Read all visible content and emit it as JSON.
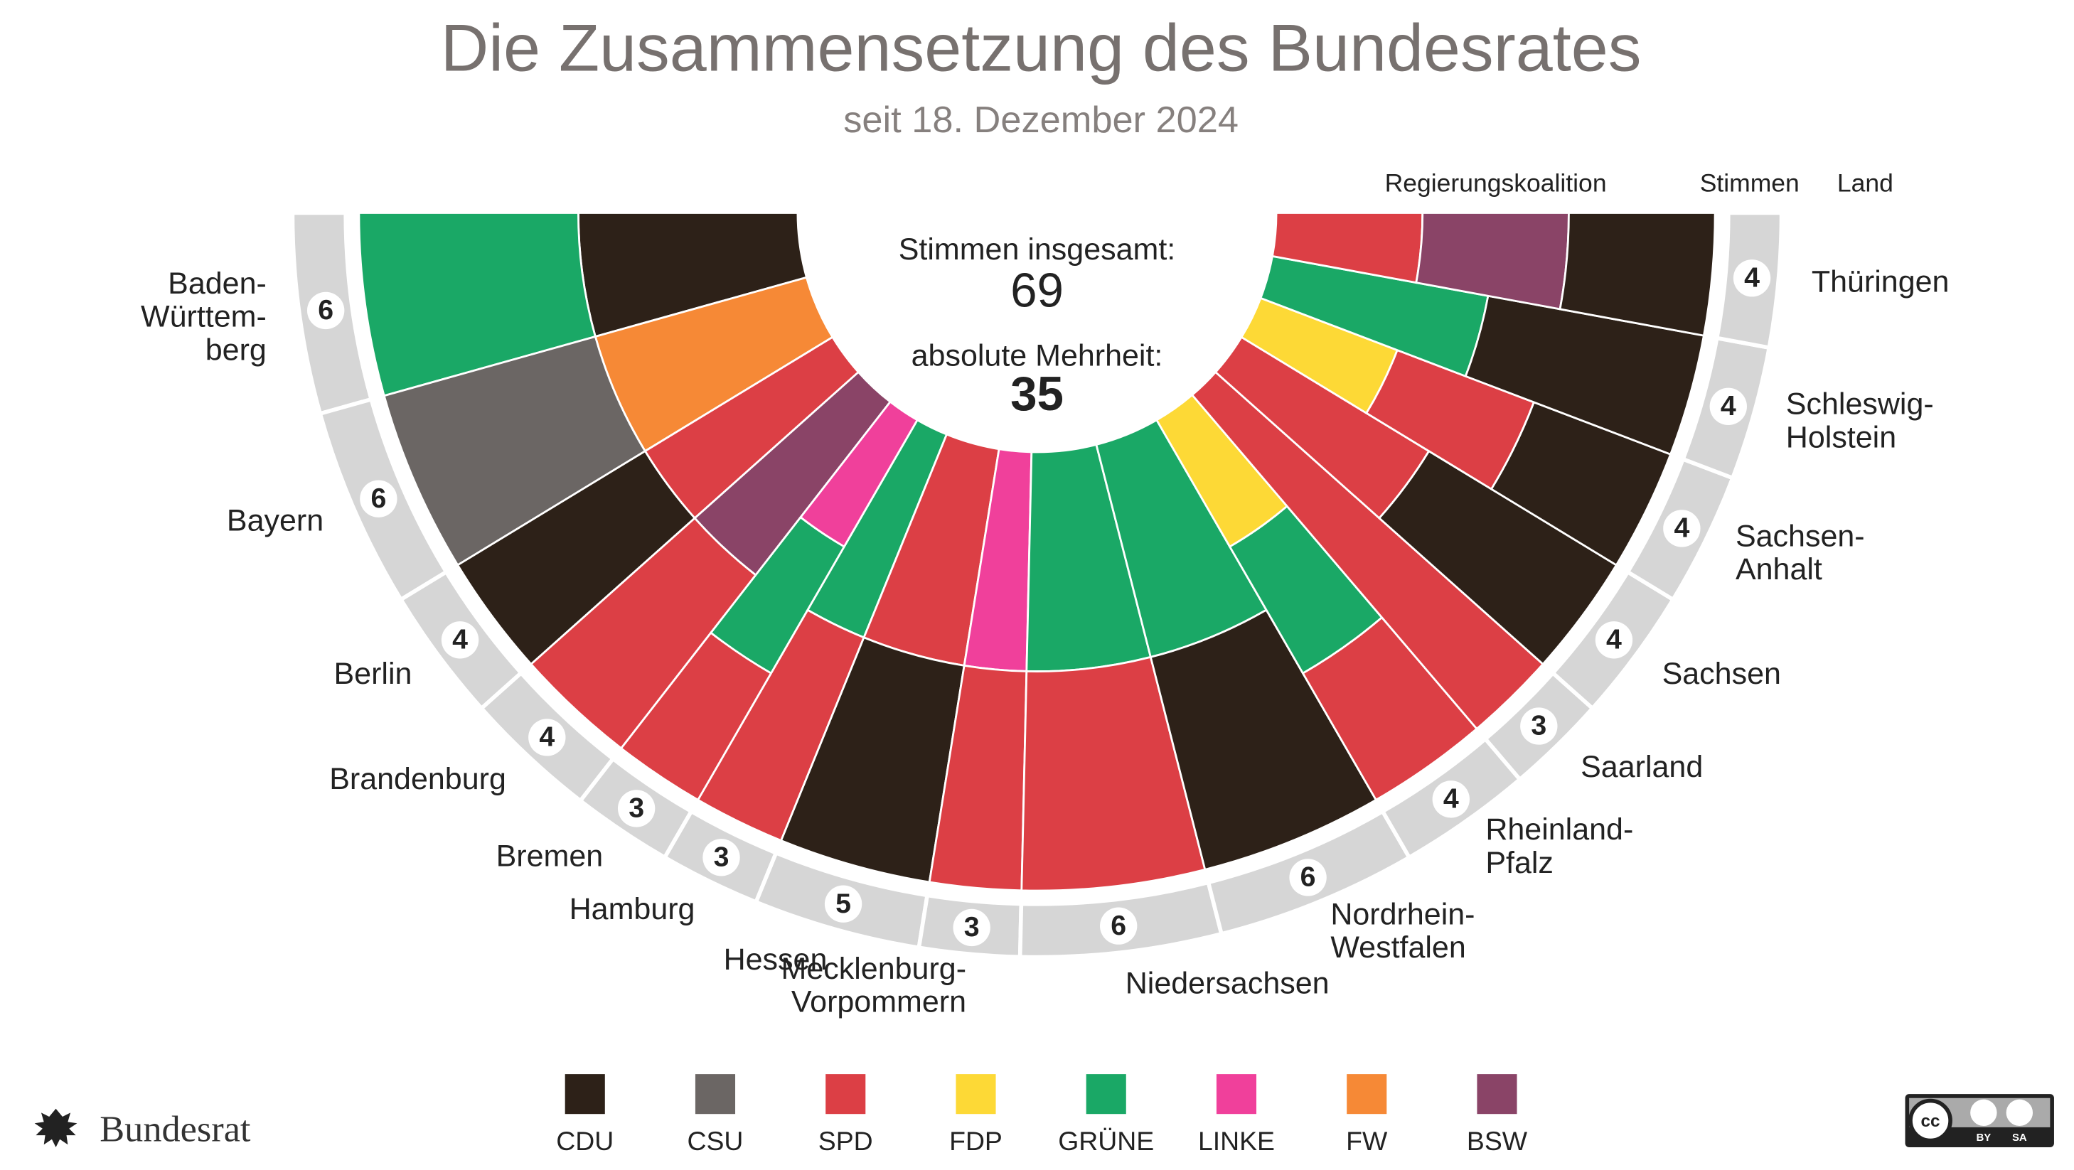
{
  "chart_data": {
    "type": "semicircle",
    "title": "Die Zusammensetzung des Bundesrates",
    "subtitle": "seit 18. Dezember 2024",
    "headers": {
      "coalition": "Regierungskoalition",
      "votes": "Stimmen",
      "state": "Land"
    },
    "total_label": "Stimmen insgesamt:",
    "total": 69,
    "majority_label": "absolute Mehrheit:",
    "majority": 35,
    "parties": [
      {
        "name": "CDU",
        "color": "#2d2118"
      },
      {
        "name": "CSU",
        "color": "#6b6664"
      },
      {
        "name": "SPD",
        "color": "#dc3f45"
      },
      {
        "name": "FDP",
        "color": "#fdd936"
      },
      {
        "name": "GRÜNE",
        "color": "#1aa866"
      },
      {
        "name": "LINKE",
        "color": "#f0409b"
      },
      {
        "name": "FW",
        "color": "#f68936"
      },
      {
        "name": "BSW",
        "color": "#8a4467"
      }
    ],
    "states": [
      {
        "label": [
          "Baden-",
          "Württem-",
          "berg"
        ],
        "votes": 6,
        "coalition": [
          "CDU",
          "GRÜNE"
        ]
      },
      {
        "label": [
          "Bayern"
        ],
        "votes": 6,
        "coalition": [
          "FW",
          "CSU"
        ]
      },
      {
        "label": [
          "Berlin"
        ],
        "votes": 4,
        "coalition": [
          "SPD",
          "CDU"
        ]
      },
      {
        "label": [
          "Brandenburg"
        ],
        "votes": 4,
        "coalition": [
          "BSW",
          "SPD"
        ]
      },
      {
        "label": [
          "Bremen"
        ],
        "votes": 3,
        "coalition": [
          "LINKE",
          "GRÜNE",
          "SPD"
        ]
      },
      {
        "label": [
          "Hamburg"
        ],
        "votes": 3,
        "coalition": [
          "GRÜNE",
          "SPD"
        ]
      },
      {
        "label": [
          "Hessen"
        ],
        "votes": 5,
        "coalition": [
          "SPD",
          "CDU"
        ]
      },
      {
        "label": [
          "Mecklenburg-",
          "Vorpommern"
        ],
        "votes": 3,
        "coalition": [
          "LINKE",
          "SPD"
        ]
      },
      {
        "label": [
          "Niedersachsen"
        ],
        "votes": 6,
        "coalition": [
          "GRÜNE",
          "SPD"
        ]
      },
      {
        "label": [
          "Nordrhein-",
          "Westfalen"
        ],
        "votes": 6,
        "coalition": [
          "GRÜNE",
          "CDU"
        ]
      },
      {
        "label": [
          "Rheinland-",
          "Pfalz"
        ],
        "votes": 4,
        "coalition": [
          "FDP",
          "GRÜNE",
          "SPD"
        ]
      },
      {
        "label": [
          "Saarland"
        ],
        "votes": 3,
        "coalition": [
          "SPD"
        ]
      },
      {
        "label": [
          "Sachsen"
        ],
        "votes": 4,
        "coalition": [
          "SPD",
          "CDU"
        ]
      },
      {
        "label": [
          "Sachsen-",
          "Anhalt"
        ],
        "votes": 4,
        "coalition": [
          "FDP",
          "SPD",
          "CDU"
        ]
      },
      {
        "label": [
          "Schleswig-",
          "Holstein"
        ],
        "votes": 4,
        "coalition": [
          "GRÜNE",
          "CDU"
        ]
      },
      {
        "label": [
          "Thüringen"
        ],
        "votes": 4,
        "coalition": [
          "SPD",
          "BSW",
          "CDU"
        ]
      }
    ]
  },
  "footer": {
    "logo": "Bundesrat",
    "license": [
      "cc",
      "BY",
      "SA"
    ]
  }
}
